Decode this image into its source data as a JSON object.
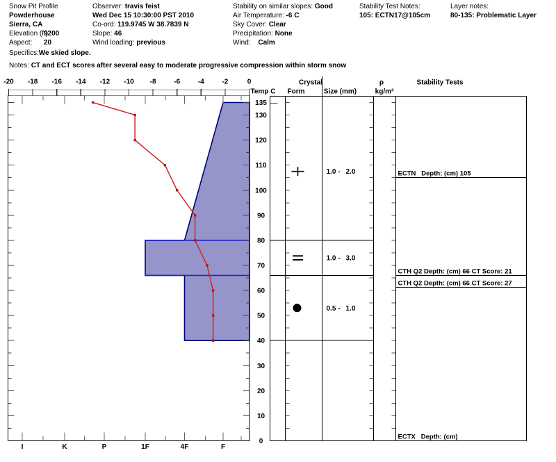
{
  "header": {
    "col1": {
      "title": "Snow Pit Profile",
      "site": "Powderhouse",
      "location": "Sierra, CA",
      "elevation_label": "Elevation (ft)",
      "elevation_value": "9200",
      "aspect_label": "Aspect:",
      "aspect_value": "20",
      "specifics_label": "Specifics:",
      "specifics_value": "We skied slope.",
      "notes_label": "Notes:",
      "notes_value": "CT and ECT scores after several easy to moderate progressive compression within storm snow"
    },
    "col2": {
      "observer_label": "Observer:",
      "observer_value": "travis feist",
      "datetime": "Wed Dec 15 10:30:00 PST 2010",
      "coord_label": "Co-ord:",
      "coord_value": "119.9745 W 38.7839 N",
      "slope_label": "Slope:",
      "slope_value": "46",
      "wind_loading_label": "Wind loading:",
      "wind_loading_value": "previous"
    },
    "col3": {
      "stability_label": "Stability on similar slopes:",
      "stability_value": "Good",
      "air_temp_label": "Air Temperature:",
      "air_temp_value": "-6 C",
      "sky_label": "Sky Cover:",
      "sky_value": "Clear",
      "precip_label": "Precipitation:",
      "precip_value": "None",
      "wind_label": "Wind:",
      "wind_value": "Calm"
    },
    "col4": {
      "label": "Stability Test Notes:",
      "value": "105: ECTN17@105cm"
    },
    "col5": {
      "label": "Layer notes:",
      "value": "80-135: Problematic Layer"
    }
  },
  "chart_data": {
    "type": "area",
    "title": "Snow pit profile: hardness layers with temperature overlay",
    "temp_axis": {
      "label": "Temp C",
      "min": -20,
      "max": 0,
      "tick_step": 2,
      "ticks": [
        -20,
        -18,
        -16,
        -14,
        -12,
        -10,
        -8,
        -6,
        -4,
        -2,
        0
      ]
    },
    "depth_axis": {
      "unit": "cm",
      "min": 0,
      "max": 135,
      "ticks": [
        135,
        130,
        120,
        110,
        100,
        90,
        80,
        70,
        60,
        50,
        40,
        30,
        20,
        10,
        0
      ]
    },
    "hardness_axis": {
      "labels": [
        "I",
        "K",
        "P",
        "1F",
        "4F",
        "F"
      ]
    },
    "surface_height_cm": 135,
    "temperature_profile": {
      "depth_cm": [
        135,
        130,
        120,
        110,
        100,
        90,
        80,
        70,
        60,
        50,
        40
      ],
      "temp_c": [
        -13,
        -9.5,
        -9.5,
        -7,
        -6,
        -4.5,
        -4.5,
        -3.5,
        -3,
        -3,
        -3
      ]
    },
    "layers": [
      {
        "top_cm": 135,
        "bottom_cm": 80,
        "hardness_top": "F",
        "hardness_bottom": "4F",
        "grain_form": "plus",
        "grain_size_min": "1.0",
        "grain_size_sep": "-",
        "grain_size_max": "2.0"
      },
      {
        "top_cm": 80,
        "bottom_cm": 66,
        "hardness_top": "1F",
        "hardness_bottom": "1F",
        "grain_form": "double-bar",
        "grain_size_min": "1.0",
        "grain_size_sep": "-",
        "grain_size_max": "3.0"
      },
      {
        "top_cm": 66,
        "bottom_cm": 40,
        "hardness_top": "4F",
        "hardness_bottom": "4F",
        "grain_form": "filled-circle",
        "grain_size_min": "0.5",
        "grain_size_sep": "-",
        "grain_size_max": "1.0"
      }
    ],
    "stability_tests": [
      {
        "label": "ECTN   Depth: (cm) 105",
        "depth_cm": 105,
        "stack": 0
      },
      {
        "label": "CTH Q2 Depth: (cm) 66 CT Score: 21",
        "depth_cm": 66,
        "stack": 0
      },
      {
        "label": "CTH Q2 Depth: (cm) 66 CT Score: 27",
        "depth_cm": 66,
        "stack": 1
      },
      {
        "label": "ECTX   Depth: (cm)",
        "depth_cm": 0,
        "stack": 0
      }
    ],
    "column_headers": {
      "temp": "Temp C",
      "crystal": "Crystal",
      "form": "Form",
      "size": "Size (mm)",
      "rho": "ρ",
      "rho_unit": "kg/m³",
      "stability": "Stability Tests"
    },
    "colors": {
      "temp_line": "#d42222",
      "temp_marker": "#bb1515",
      "hardness_fill": "#9595ca",
      "hardness_outline": "#00007d",
      "layer_boundary_line": "#2222cc",
      "axis_bar": "#8a8a8a"
    }
  }
}
